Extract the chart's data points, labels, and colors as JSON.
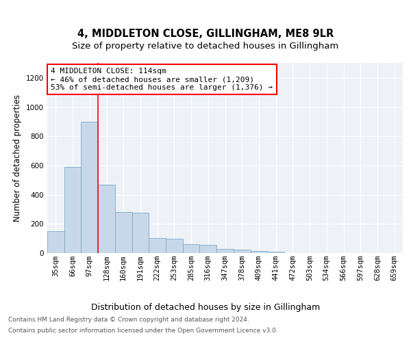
{
  "title": "4, MIDDLETON CLOSE, GILLINGHAM, ME8 9LR",
  "subtitle": "Size of property relative to detached houses in Gillingham",
  "xlabel": "Distribution of detached houses by size in Gillingham",
  "ylabel": "Number of detached properties",
  "bar_color": "#c8d8ea",
  "bar_edge_color": "#7aaac8",
  "categories": [
    "35sqm",
    "66sqm",
    "97sqm",
    "128sqm",
    "160sqm",
    "191sqm",
    "222sqm",
    "253sqm",
    "285sqm",
    "316sqm",
    "347sqm",
    "378sqm",
    "409sqm",
    "441sqm",
    "472sqm",
    "503sqm",
    "534sqm",
    "566sqm",
    "597sqm",
    "628sqm",
    "659sqm"
  ],
  "values": [
    150,
    590,
    900,
    470,
    280,
    275,
    105,
    100,
    60,
    55,
    28,
    22,
    14,
    8,
    2,
    1,
    0,
    0,
    0,
    0,
    0
  ],
  "red_line_x": 2.5,
  "annotation_line1": "4 MIDDLETON CLOSE: 114sqm",
  "annotation_line2": "← 46% of detached houses are smaller (1,209)",
  "annotation_line3": "53% of semi-detached houses are larger (1,376) →",
  "ylim": [
    0,
    1300
  ],
  "yticks": [
    0,
    200,
    400,
    600,
    800,
    1000,
    1200
  ],
  "footer_line1": "Contains HM Land Registry data © Crown copyright and database right 2024.",
  "footer_line2": "Contains public sector information licensed under the Open Government Licence v3.0.",
  "background_color": "#eef2f7",
  "title_fontsize": 10.5,
  "subtitle_fontsize": 9.5,
  "ylabel_fontsize": 8.5,
  "xlabel_fontsize": 9,
  "tick_fontsize": 7.5,
  "annotation_fontsize": 8,
  "footer_fontsize": 6.5
}
